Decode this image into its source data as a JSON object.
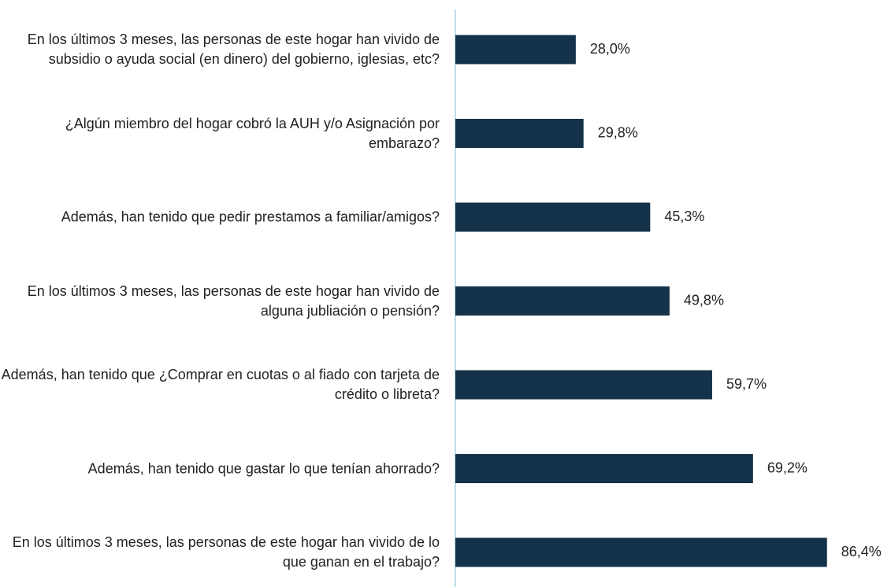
{
  "chart_data": {
    "type": "bar",
    "orientation": "horizontal",
    "categories": [
      "En los últimos 3 meses, las personas de este hogar han vivido de subsidio o ayuda social (en dinero) del gobierno, iglesias, etc?",
      "¿Algún miembro del hogar cobró la AUH y/o Asignación por embarazo?",
      "Además, han tenido que pedir prestamos a familiar/amigos?",
      "En los últimos 3 meses, las personas de este hogar han vivido de alguna jubliación o pensión?",
      "Además, han tenido que ¿Comprar en cuotas o al fiado con tarjeta de crédito o libreta?",
      "Además, han tenido que gastar lo que tenían ahorrado?",
      "En los últimos 3 meses, las personas de este hogar han vivido de lo que ganan en el trabajo?"
    ],
    "values": [
      28.0,
      29.8,
      45.3,
      49.8,
      59.7,
      69.2,
      86.4
    ],
    "value_labels": [
      "28,0%",
      "29,8%",
      "45,3%",
      "49,8%",
      "59,7%",
      "69,2%",
      "86,4%"
    ],
    "color": "#14324a",
    "xlim": [
      0,
      100
    ]
  }
}
